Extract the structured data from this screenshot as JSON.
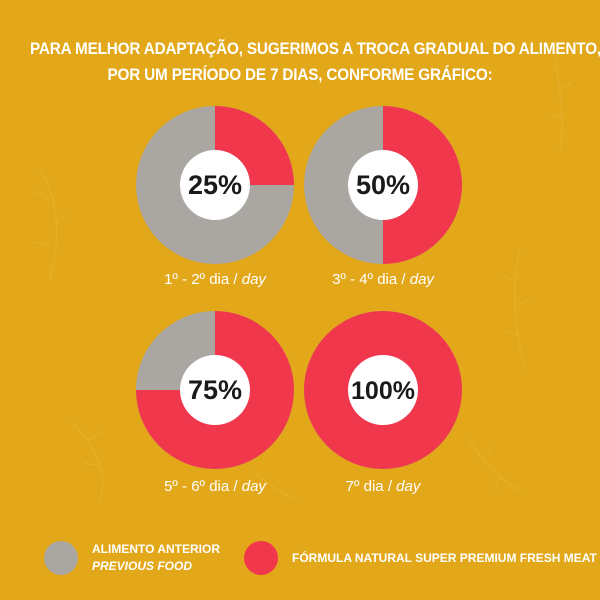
{
  "heading": {
    "line1": "PARA MELHOR ADAPTAÇÃO, SUGERIMOS A TROCA GRADUAL DO ALIMENTO,",
    "line2": "POR UM PERÍODO DE 7 DIAS, CONFORME GRÁFICO:"
  },
  "colors": {
    "background": "#e2a81a",
    "previous_food": "#aaa6a1",
    "new_food": "#f0374c",
    "center": "#ffffff",
    "text": "#ffffff"
  },
  "chart_data": [
    {
      "type": "pie",
      "center_label": "25%",
      "values": [
        25,
        75
      ],
      "labels": [
        "FÓRMULA NATURAL SUPER PREMIUM FRESH MEAT",
        "ALIMENTO ANTERIOR"
      ],
      "caption_pt": "1º - 2º dia / ",
      "caption_en": "day"
    },
    {
      "type": "pie",
      "center_label": "50%",
      "values": [
        50,
        50
      ],
      "labels": [
        "FÓRMULA NATURAL SUPER PREMIUM FRESH MEAT",
        "ALIMENTO ANTERIOR"
      ],
      "caption_pt": "3º - 4º dia / ",
      "caption_en": "day"
    },
    {
      "type": "pie",
      "center_label": "75%",
      "values": [
        75,
        25
      ],
      "labels": [
        "FÓRMULA NATURAL SUPER PREMIUM FRESH MEAT",
        "ALIMENTO ANTERIOR"
      ],
      "caption_pt": "5º - 6º dia / ",
      "caption_en": "day"
    },
    {
      "type": "pie",
      "center_label": "100%",
      "values": [
        100,
        0
      ],
      "labels": [
        "FÓRMULA NATURAL SUPER PREMIUM FRESH MEAT",
        "ALIMENTO ANTERIOR"
      ],
      "caption_pt": "7º dia / ",
      "caption_en": "day"
    }
  ],
  "legend": {
    "previous": {
      "title": "ALIMENTO ANTERIOR",
      "subtitle": "PREVIOUS FOOD",
      "icon": "gray-circle-icon"
    },
    "new": {
      "title": "FÓRMULA NATURAL SUPER PREMIUM FRESH MEAT",
      "icon": "red-circle-icon"
    }
  }
}
